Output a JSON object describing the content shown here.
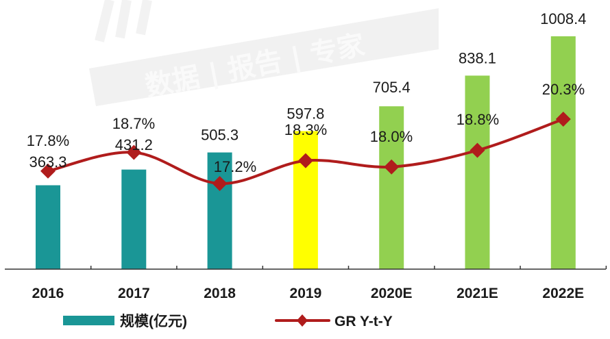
{
  "chart_data": {
    "type": "bar+line",
    "title": "",
    "categories": [
      "2016",
      "2017",
      "2018",
      "2019",
      "2020E",
      "2021E",
      "2022E"
    ],
    "series": [
      {
        "name": "规模(亿元)",
        "type": "bar",
        "axis": "left",
        "values": [
          363.3,
          431.2,
          505.3,
          597.8,
          705.4,
          838.1,
          1008.4
        ],
        "value_labels": [
          "363.3",
          "431.2",
          "505.3",
          "597.8",
          "705.4",
          "838.1",
          "1008.4"
        ],
        "colors": [
          "#1a9696",
          "#1a9696",
          "#1a9696",
          "#ffff00",
          "#92d050",
          "#92d050",
          "#92d050"
        ]
      },
      {
        "name": "GR Y-t-Y",
        "type": "line",
        "axis": "right",
        "values": [
          17.8,
          18.7,
          17.2,
          18.3,
          18.0,
          18.8,
          20.3
        ],
        "value_labels": [
          "17.8%",
          "18.7%",
          "17.2%",
          "18.3%",
          "18.0%",
          "18.8%",
          "20.3%"
        ],
        "color": "#b01c1c",
        "marker": "diamond"
      }
    ],
    "xlabel": "",
    "ylabel": "",
    "grid": false,
    "legend_position": "bottom"
  },
  "legend": {
    "bar_label": "规模(亿元)",
    "line_label": "GR Y-t-Y"
  },
  "watermark": {
    "text": "数据 | 报告 | 专家"
  },
  "colors": {
    "teal": "#1a9696",
    "yellow": "#ffff00",
    "green": "#92d050",
    "line": "#b01c1c",
    "axis": "#333333",
    "label": "#1a1a1a"
  }
}
